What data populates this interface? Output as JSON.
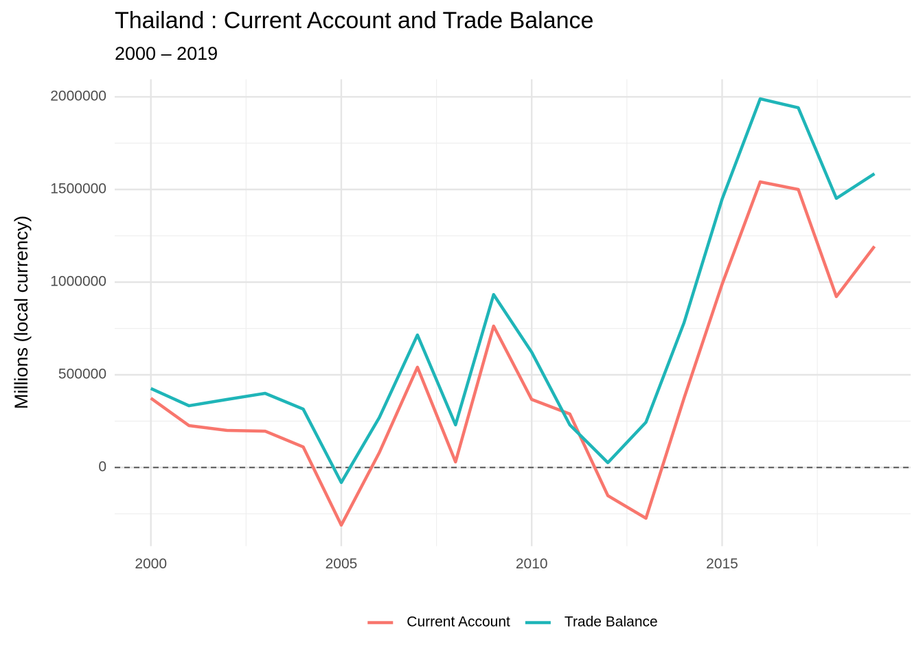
{
  "chart_data": {
    "type": "line",
    "title": "Thailand : Current Account and Trade Balance",
    "subtitle": "2000 – 2019",
    "y_label": "Millions (local currency)",
    "x": [
      2000,
      2001,
      2002,
      2003,
      2004,
      2005,
      2006,
      2007,
      2008,
      2009,
      2010,
      2011,
      2012,
      2013,
      2014,
      2015,
      2016,
      2017,
      2018,
      2019
    ],
    "series": [
      {
        "name": "Current Account",
        "color": "#F8766D",
        "values": [
          374000,
          226000,
          200000,
          196000,
          111000,
          -311000,
          81000,
          541000,
          30000,
          763000,
          367000,
          289000,
          -152000,
          -274000,
          374000,
          989000,
          1541000,
          1500000,
          922000,
          1193000
        ]
      },
      {
        "name": "Trade Balance",
        "color": "#1FB5B8",
        "values": [
          426000,
          333000,
          367000,
          400000,
          315000,
          -81000,
          270000,
          715000,
          230000,
          933000,
          622000,
          230000,
          26000,
          244000,
          781000,
          1448000,
          1989000,
          1941000,
          1452000,
          1585000
        ]
      }
    ],
    "xlim": [
      1999.05,
      2019.95
    ],
    "xticks": [
      2000,
      2005,
      2010,
      2015
    ],
    "xminor_ticks": [
      2002.5,
      2007.5,
      2012.5,
      2017.5
    ],
    "ylim": [
      -424500,
      2094500
    ],
    "yticks": [
      0,
      500000,
      1000000,
      1500000,
      2000000
    ],
    "yminor_ticks": [
      -250000,
      250000,
      750000,
      1250000,
      1750000
    ],
    "hline": 0,
    "grid": true,
    "legend": "bottom"
  }
}
